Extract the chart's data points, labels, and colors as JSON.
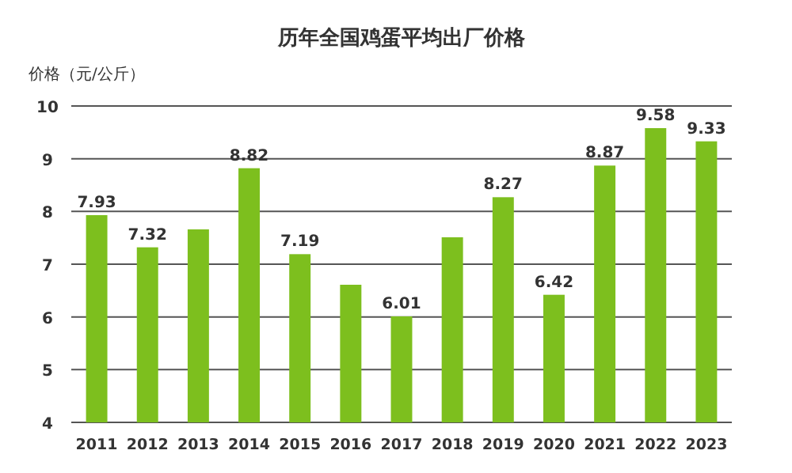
{
  "chart_data": {
    "type": "bar",
    "title": "历年全国鸡蛋平均出厂价格",
    "ylabel": "价格（元/公斤）",
    "categories": [
      "2011",
      "2012",
      "2013",
      "2014",
      "2015",
      "2016",
      "2017",
      "2018",
      "2019",
      "2020",
      "2021",
      "2022",
      "2023"
    ],
    "values": [
      7.93,
      7.32,
      7.66,
      8.82,
      7.19,
      6.61,
      6.01,
      7.51,
      8.27,
      6.42,
      8.87,
      9.58,
      9.33
    ],
    "value_labels": [
      "7.93",
      "7.32",
      null,
      "8.82",
      "7.19",
      null,
      "6.01",
      null,
      "8.27",
      "6.42",
      "8.87",
      "9.58",
      "9.33"
    ],
    "color": "#7dbf1e",
    "ylim": [
      4,
      10
    ],
    "yticks": [
      4,
      5,
      6,
      7,
      8,
      9,
      10
    ],
    "grid": "y"
  }
}
